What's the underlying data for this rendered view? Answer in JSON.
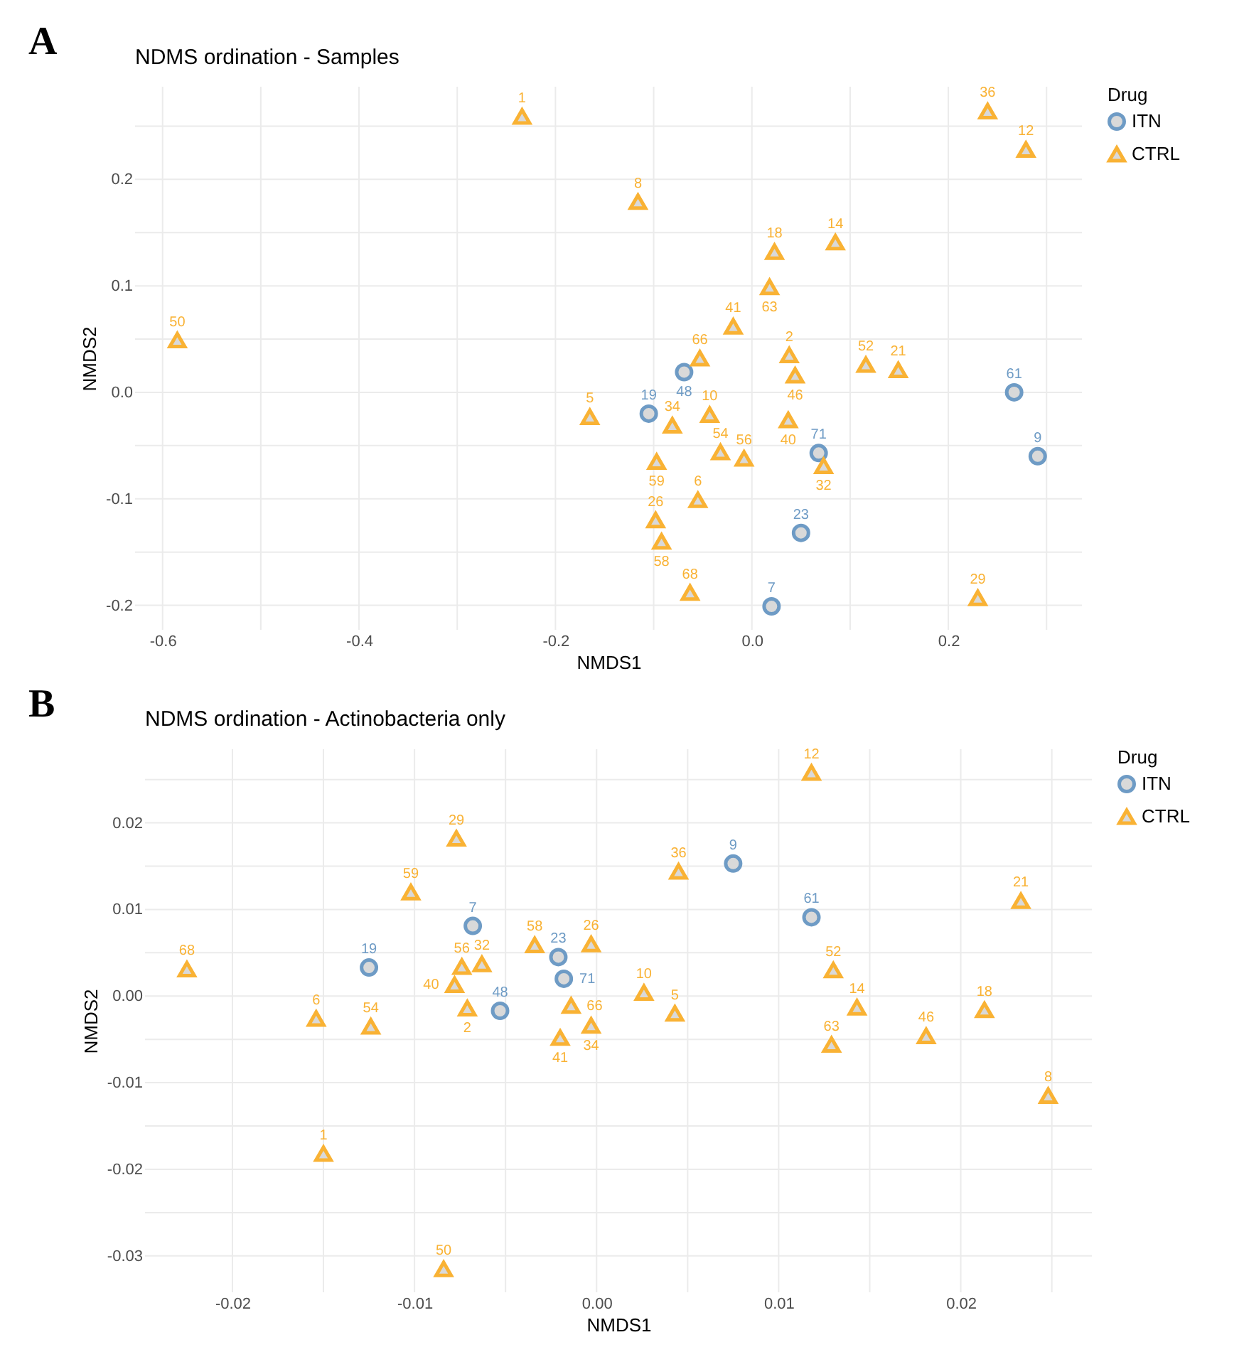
{
  "chart_data": [
    {
      "type": "scatter",
      "title": "NDMS ordination - Samples",
      "xlabel": "NMDS1",
      "ylabel": "NMDS2",
      "legend_title": "Drug",
      "legend": "right",
      "grid": true,
      "xlim": [
        -0.628,
        0.336
      ],
      "ylim": [
        -0.223,
        0.287
      ],
      "xticks": [
        -0.6,
        {
          "value": -0.5,
          "label": null
        },
        -0.4,
        {
          "value": -0.3,
          "label": null
        },
        -0.2,
        {
          "value": -0.1,
          "label": null
        },
        {
          "value": 0,
          "label": "0.0"
        },
        {
          "value": 0.1,
          "label": null
        },
        0.2,
        {
          "value": 0.3,
          "label": null
        }
      ],
      "yticks": [
        -0.2,
        {
          "value": -0.15,
          "label": null
        },
        -0.1,
        {
          "value": -0.05,
          "label": null
        },
        {
          "value": 0,
          "label": "0.0"
        },
        {
          "value": 0.05,
          "label": null
        },
        0.1,
        {
          "value": 0.15,
          "label": null
        },
        0.2,
        {
          "value": 0.25,
          "label": null
        }
      ],
      "series": [
        {
          "name": "ITN",
          "color": "#6e9bc5",
          "marker": "circle",
          "x": [
            -0.069,
            -0.105,
            0.267,
            0.291,
            0.068,
            0.05,
            0.02
          ],
          "values": [
            0.019,
            -0.02,
            0.0,
            -0.06,
            -0.057,
            -0.132,
            -0.201
          ]
        },
        {
          "name": "CTRL",
          "color": "#f9b234",
          "marker": "triangle",
          "x": [
            -0.234,
            0.24,
            0.279,
            -0.116,
            0.023,
            0.085,
            0.018,
            -0.019,
            -0.585,
            -0.053,
            0.038,
            0.044,
            0.116,
            0.149,
            -0.165,
            -0.081,
            -0.043,
            0.037,
            0.073,
            -0.097,
            -0.032,
            -0.008,
            -0.055,
            -0.098,
            -0.092,
            -0.063,
            0.23
          ],
          "values": [
            0.259,
            0.264,
            0.228,
            0.179,
            0.132,
            0.141,
            0.099,
            0.062,
            0.049,
            0.032,
            0.035,
            0.016,
            0.026,
            0.021,
            -0.023,
            -0.031,
            -0.021,
            -0.026,
            -0.069,
            -0.065,
            -0.056,
            -0.062,
            -0.101,
            -0.12,
            -0.14,
            -0.188,
            -0.193
          ]
        }
      ],
      "annotations": [
        "A",
        {
          "text": "48",
          "x": -0.069,
          "y": 0.019
        },
        {
          "text": "19",
          "x": -0.105,
          "y": -0.02
        },
        {
          "text": "61",
          "x": 0.267,
          "y": 0.0
        },
        {
          "text": "9",
          "x": 0.291,
          "y": -0.06
        },
        {
          "text": "71",
          "x": 0.068,
          "y": -0.057
        },
        {
          "text": "23",
          "x": 0.05,
          "y": -0.132
        },
        {
          "text": "7",
          "x": 0.02,
          "y": -0.201
        },
        {
          "text": "1",
          "x": -0.234,
          "y": 0.259
        },
        {
          "text": "36",
          "x": 0.24,
          "y": 0.264
        },
        {
          "text": "12",
          "x": 0.279,
          "y": 0.228
        },
        {
          "text": "8",
          "x": -0.116,
          "y": 0.179
        },
        {
          "text": "18",
          "x": 0.023,
          "y": 0.132
        },
        {
          "text": "14",
          "x": 0.085,
          "y": 0.141
        },
        {
          "text": "63",
          "x": 0.018,
          "y": 0.099
        },
        {
          "text": "41",
          "x": -0.019,
          "y": 0.062
        },
        {
          "text": "50",
          "x": -0.585,
          "y": 0.049
        },
        {
          "text": "66",
          "x": -0.053,
          "y": 0.032
        },
        {
          "text": "2",
          "x": 0.038,
          "y": 0.035
        },
        {
          "text": "46",
          "x": 0.044,
          "y": 0.016
        },
        {
          "text": "52",
          "x": 0.116,
          "y": 0.026
        },
        {
          "text": "21",
          "x": 0.149,
          "y": 0.021
        },
        {
          "text": "5",
          "x": -0.165,
          "y": -0.023
        },
        {
          "text": "34",
          "x": -0.081,
          "y": -0.031
        },
        {
          "text": "10",
          "x": -0.043,
          "y": -0.021
        },
        {
          "text": "40",
          "x": 0.037,
          "y": -0.026
        },
        {
          "text": "32",
          "x": 0.073,
          "y": -0.069
        },
        {
          "text": "59",
          "x": -0.097,
          "y": -0.065
        },
        {
          "text": "54",
          "x": -0.032,
          "y": -0.056
        },
        {
          "text": "56",
          "x": -0.008,
          "y": -0.062
        },
        {
          "text": "6",
          "x": -0.055,
          "y": -0.101
        },
        {
          "text": "26",
          "x": -0.098,
          "y": -0.12
        },
        {
          "text": "58",
          "x": -0.092,
          "y": -0.14
        },
        {
          "text": "68",
          "x": -0.063,
          "y": -0.188
        },
        {
          "text": "29",
          "x": 0.23,
          "y": -0.193
        }
      ]
    },
    {
      "type": "scatter",
      "title": "NDMS ordination - Actinobacteria only",
      "xlabel": "NMDS1",
      "ylabel": "NMDS2",
      "legend_title": "Drug",
      "legend": "right",
      "grid": true,
      "xlim": [
        -0.0248,
        0.0272
      ],
      "ylim": [
        -0.0342,
        0.0285
      ],
      "xticks": [
        -0.02,
        {
          "value": -0.015,
          "label": null
        },
        -0.01,
        {
          "value": -0.005,
          "label": null
        },
        {
          "value": 0,
          "label": "0.00"
        },
        {
          "value": 0.005,
          "label": null
        },
        0.01,
        {
          "value": 0.015,
          "label": null
        },
        0.02,
        {
          "value": 0.025,
          "label": null
        }
      ],
      "yticks": [
        -0.03,
        {
          "value": -0.025,
          "label": null
        },
        -0.02,
        {
          "value": -0.015,
          "label": null
        },
        -0.01,
        {
          "value": -0.005,
          "label": null
        },
        {
          "value": 0,
          "label": "0.00"
        },
        {
          "value": 0.005,
          "label": null
        },
        0.01,
        {
          "value": 0.015,
          "label": null
        },
        0.02,
        {
          "value": 0.025,
          "label": null
        }
      ],
      "series": [
        {
          "name": "ITN",
          "color": "#6e9bc5",
          "marker": "circle",
          "x": [
            -0.0125,
            -0.0068,
            -0.0053,
            -0.0021,
            -0.0018,
            0.0075,
            0.0118
          ],
          "values": [
            0.0033,
            0.0081,
            -0.0017,
            0.0045,
            0.002,
            0.0153,
            0.0091
          ]
        },
        {
          "name": "CTRL",
          "color": "#f9b234",
          "marker": "triangle",
          "x": [
            -0.0225,
            -0.0154,
            -0.0124,
            -0.015,
            -0.0084,
            -0.0102,
            -0.0077,
            -0.0074,
            -0.0063,
            -0.0078,
            -0.0071,
            -0.0034,
            -0.0014,
            -0.002,
            -0.0003,
            -0.0003,
            0.0026,
            0.0043,
            0.0045,
            0.0118,
            0.013,
            0.0143,
            0.0129,
            0.0181,
            0.0213,
            0.0233,
            0.0248
          ],
          "values": [
            0.0031,
            -0.0026,
            -0.0035,
            -0.0182,
            -0.0315,
            0.012,
            0.0182,
            0.0034,
            0.0037,
            0.0013,
            -0.0014,
            0.0059,
            -0.0011,
            -0.0048,
            0.006,
            -0.0034,
            0.0004,
            -0.002,
            0.0144,
            0.0258,
            0.003,
            -0.0013,
            -0.0056,
            -0.0046,
            -0.0016,
            0.011,
            -0.0115
          ]
        }
      ],
      "annotations": [
        "B",
        {
          "text": "19",
          "x": -0.0125,
          "y": 0.0033
        },
        {
          "text": "7",
          "x": -0.0068,
          "y": 0.0081
        },
        {
          "text": "48",
          "x": -0.0053,
          "y": -0.0017
        },
        {
          "text": "23",
          "x": -0.0021,
          "y": 0.0045
        },
        {
          "text": "71",
          "x": -0.0018,
          "y": 0.002
        },
        {
          "text": "9",
          "x": 0.0075,
          "y": 0.0153
        },
        {
          "text": "61",
          "x": 0.0118,
          "y": 0.0091
        },
        {
          "text": "68",
          "x": -0.0225,
          "y": 0.0031
        },
        {
          "text": "6",
          "x": -0.0154,
          "y": -0.0026
        },
        {
          "text": "54",
          "x": -0.0124,
          "y": -0.0035
        },
        {
          "text": "1",
          "x": -0.015,
          "y": -0.0182
        },
        {
          "text": "50",
          "x": -0.0084,
          "y": -0.0315
        },
        {
          "text": "59",
          "x": -0.0102,
          "y": 0.012
        },
        {
          "text": "29",
          "x": -0.0077,
          "y": 0.0182
        },
        {
          "text": "56",
          "x": -0.0074,
          "y": 0.0034
        },
        {
          "text": "32",
          "x": -0.0063,
          "y": 0.0037
        },
        {
          "text": "40",
          "x": -0.0078,
          "y": 0.0013
        },
        {
          "text": "2",
          "x": -0.0071,
          "y": -0.0014
        },
        {
          "text": "58",
          "x": -0.0034,
          "y": 0.0059
        },
        {
          "text": "66",
          "x": -0.0014,
          "y": -0.0011
        },
        {
          "text": "41",
          "x": -0.002,
          "y": -0.0048
        },
        {
          "text": "26",
          "x": -0.0003,
          "y": 0.006
        },
        {
          "text": "34",
          "x": -0.0003,
          "y": -0.0034
        },
        {
          "text": "10",
          "x": 0.0026,
          "y": 0.0004
        },
        {
          "text": "5",
          "x": 0.0043,
          "y": -0.002
        },
        {
          "text": "36",
          "x": 0.0045,
          "y": 0.0144
        },
        {
          "text": "12",
          "x": 0.0118,
          "y": 0.0258
        },
        {
          "text": "52",
          "x": 0.013,
          "y": 0.003
        },
        {
          "text": "14",
          "x": 0.0143,
          "y": -0.0013
        },
        {
          "text": "63",
          "x": 0.0129,
          "y": -0.0056
        },
        {
          "text": "46",
          "x": 0.0181,
          "y": -0.0046
        },
        {
          "text": "18",
          "x": 0.0213,
          "y": -0.0016
        },
        {
          "text": "21",
          "x": 0.0233,
          "y": 0.011
        },
        {
          "text": "8",
          "x": 0.0248,
          "y": -0.0115
        }
      ]
    }
  ]
}
